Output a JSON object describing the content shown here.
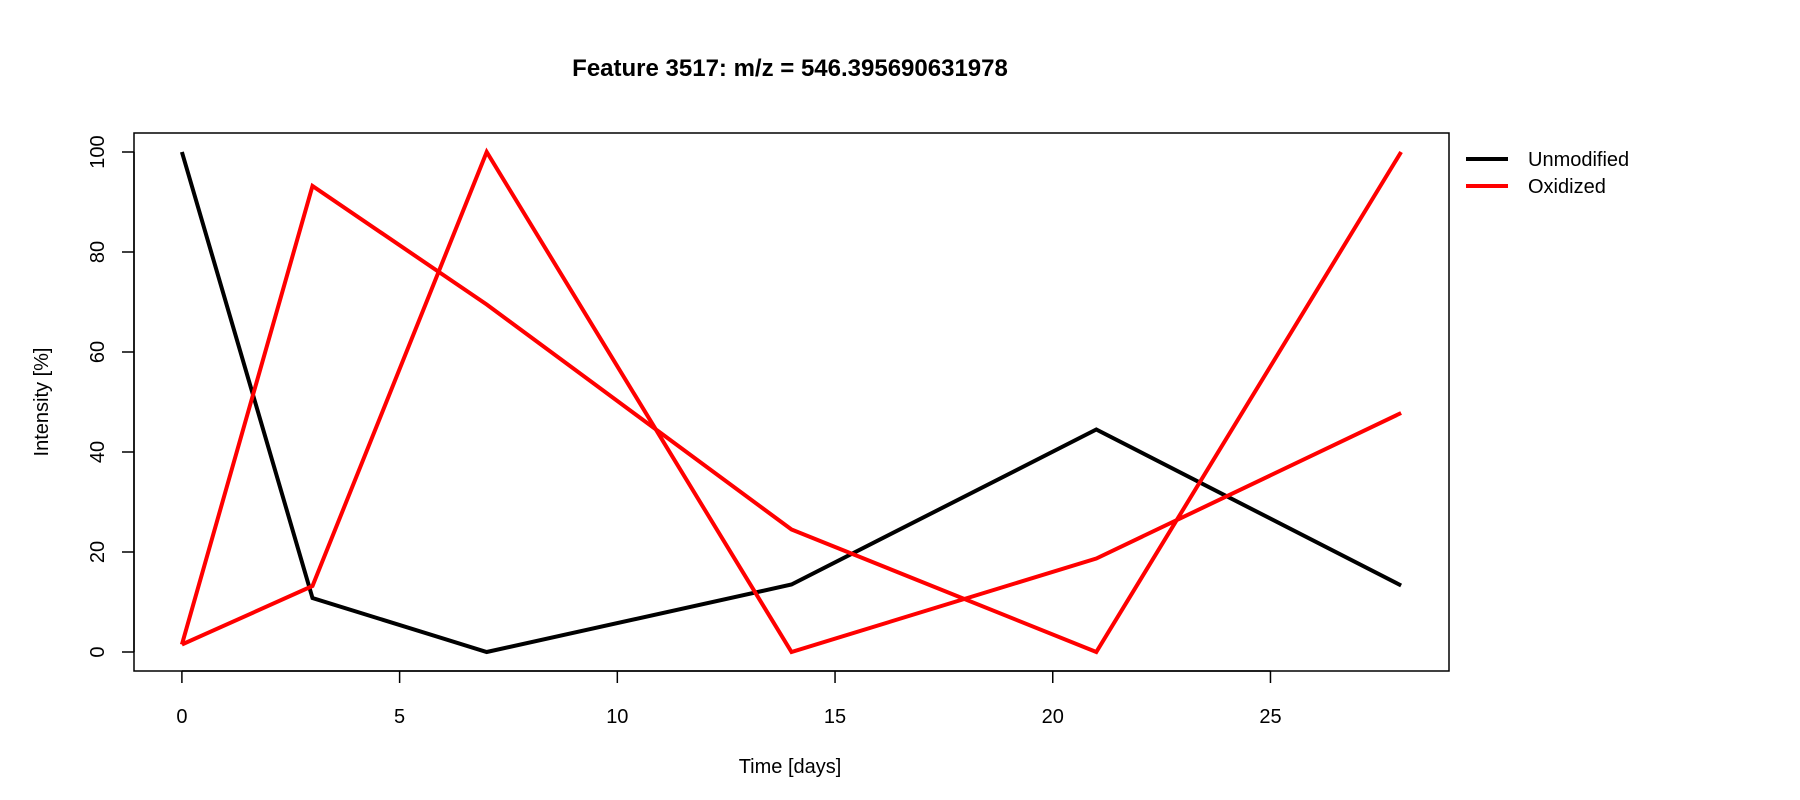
{
  "chart_data": {
    "type": "line",
    "title": "Feature 3517: m/z = 546.395690631978",
    "xlabel": "Time [days]",
    "ylabel": "Intensity [%]",
    "xlim": [
      -1.1,
      29.1
    ],
    "ylim": [
      -3.8,
      103.8
    ],
    "x_ticks": [
      0,
      5,
      10,
      15,
      20,
      25
    ],
    "y_ticks": [
      0,
      20,
      40,
      60,
      80,
      100
    ],
    "grid": false,
    "legend_position": "outside-top-right",
    "legend": [
      {
        "label": "Unmodified",
        "color": "#000000"
      },
      {
        "label": "Oxidized",
        "color": "#ff0000"
      }
    ],
    "x": [
      0,
      3,
      7,
      14,
      21,
      28
    ],
    "series": [
      {
        "group": "Unmodified",
        "color": "#000000",
        "values": [
          100,
          10.8,
          0,
          13.5,
          44.5,
          13.3
        ]
      },
      {
        "group": "Oxidized",
        "color": "#ff0000",
        "values": [
          1.5,
          93.2,
          69.5,
          24.5,
          0,
          100
        ]
      },
      {
        "group": "Oxidized",
        "color": "#ff0000",
        "values": [
          1.5,
          13.2,
          100,
          0,
          18.7,
          47.8
        ]
      }
    ]
  }
}
